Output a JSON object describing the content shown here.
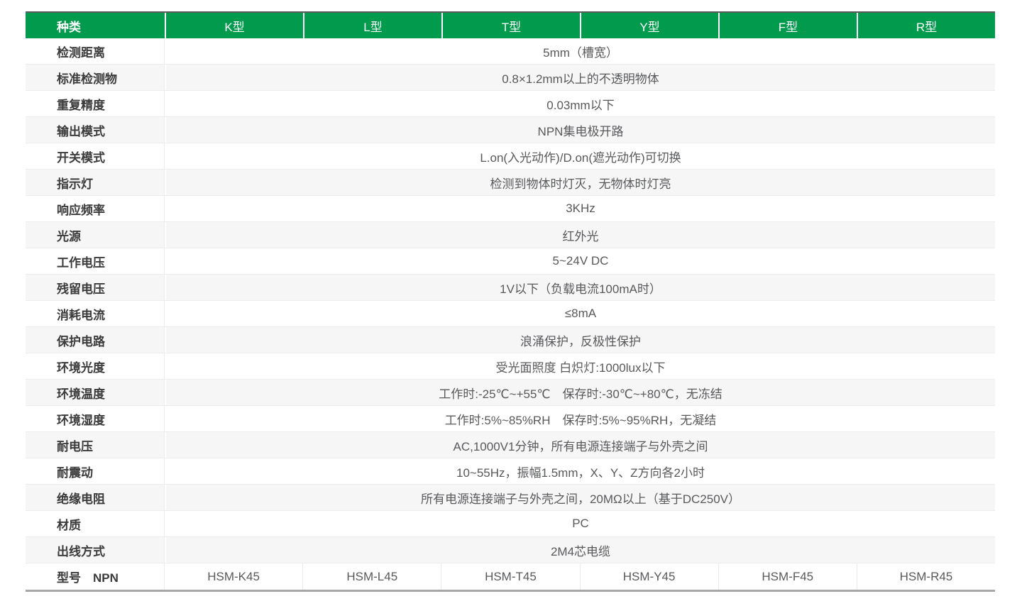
{
  "table": {
    "header": {
      "bg_color": "#029a4c",
      "top_border_color": "#5b5b5b",
      "text_color": "#ffffff",
      "columns": [
        "种类",
        "K型",
        "L型",
        "T型",
        "Y型",
        "F型",
        "R型"
      ]
    },
    "rows": [
      {
        "label": "检测距离",
        "value": "5mm（槽宽）"
      },
      {
        "label": "标准检测物",
        "value": "0.8×1.2mm以上的不透明物体"
      },
      {
        "label": "重复精度",
        "value": "0.03mm以下"
      },
      {
        "label": "输出模式",
        "value": "NPN集电极开路"
      },
      {
        "label": "开关模式",
        "value": "L.on(入光动作)/D.on(遮光动作)可切换"
      },
      {
        "label": "指示灯",
        "value": "检测到物体时灯灭，无物体时灯亮"
      },
      {
        "label": "响应频率",
        "value": "3KHz"
      },
      {
        "label": "光源",
        "value": "红外光"
      },
      {
        "label": "工作电压",
        "value": "5~24V DC"
      },
      {
        "label": "残留电压",
        "value": "1V以下（负载电流100mA时）"
      },
      {
        "label": "消耗电流",
        "value": "≤8mA"
      },
      {
        "label": "保护电路",
        "value": "浪涌保护，反极性保护"
      },
      {
        "label": "环境光度",
        "value": "受光面照度 白炽灯:1000lux以下"
      },
      {
        "label": "环境温度",
        "value": "工作时:-25℃~+55℃　保存时:-30℃~+80℃，无冻结"
      },
      {
        "label": "环境湿度",
        "value": "工作时:5%~85%RH　保存时:5%~95%RH，无凝结"
      },
      {
        "label": "耐电压",
        "value": "AC,1000V1分钟，所有电源连接端子与外壳之间"
      },
      {
        "label": "耐震动",
        "value": "10~55Hz，振幅1.5mm，X、Y、Z方向各2小时"
      },
      {
        "label": "绝缘电阻",
        "value": "所有电源连接端子与外壳之间，20MΩ以上（基于DC250V）"
      },
      {
        "label": "材质",
        "value": "PC"
      },
      {
        "label": "出线方式",
        "value": "2M4芯电缆"
      }
    ],
    "model_row": {
      "label": "型号　NPN",
      "models": [
        "HSM-K45",
        "HSM-L45",
        "HSM-T45",
        "HSM-Y45",
        "HSM-F45",
        "HSM-R45"
      ]
    },
    "colors": {
      "stripe": "#f6f6f7",
      "hairline": "#ececec",
      "label_text": "#3b3b3b",
      "value_text": "#58595b",
      "bottom_rule": "#a7a7a7"
    }
  }
}
